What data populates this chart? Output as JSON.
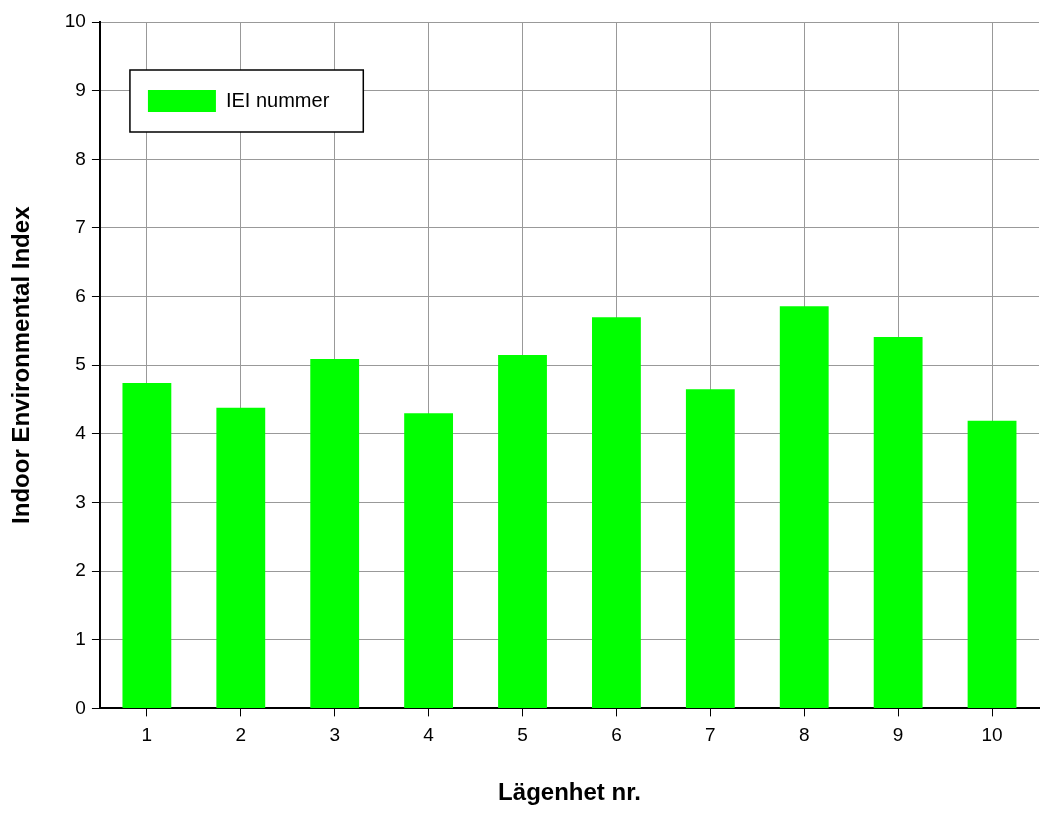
{
  "chart_data": {
    "type": "bar",
    "xlabel": "Lägenhet nr.",
    "ylabel": "Indoor Environmental Index",
    "categories": [
      "1",
      "2",
      "3",
      "4",
      "5",
      "6",
      "7",
      "8",
      "9",
      "10"
    ],
    "series": [
      {
        "name": "IEI nummer",
        "color": "#00ff00",
        "values": [
          4.74,
          4.38,
          5.09,
          4.3,
          5.15,
          5.7,
          4.65,
          5.86,
          5.41,
          4.19
        ]
      }
    ],
    "ylim": [
      0,
      10
    ],
    "yticks": [
      0,
      1,
      2,
      3,
      4,
      5,
      6,
      7,
      8,
      9,
      10
    ],
    "grid": true,
    "legend": "top left"
  }
}
